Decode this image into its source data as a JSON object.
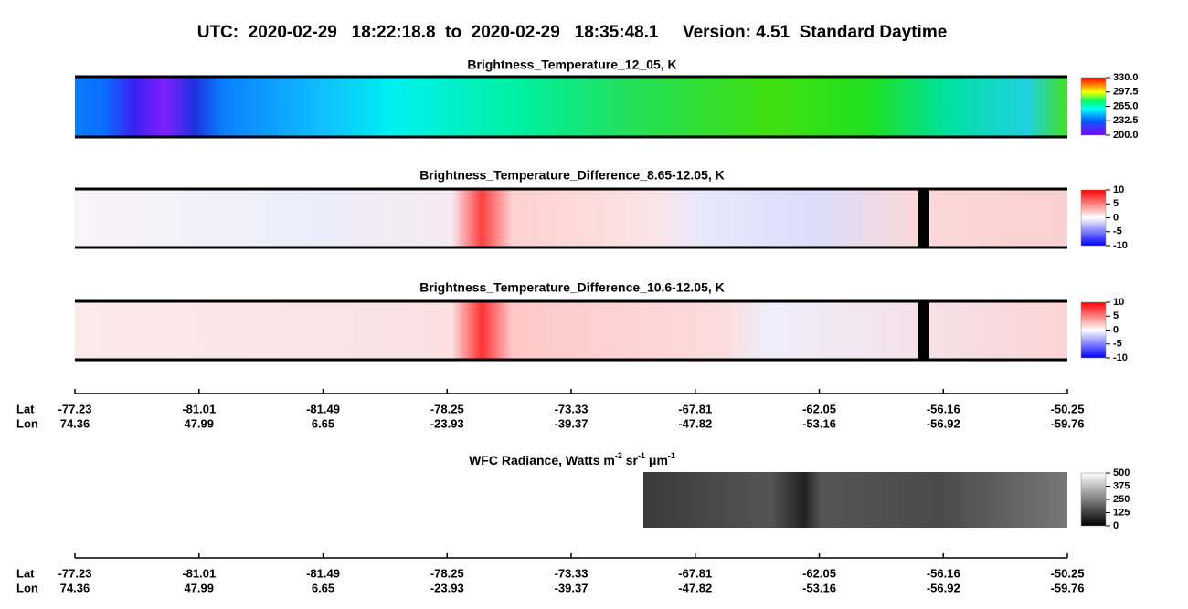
{
  "header": {
    "title": "UTC:  2020-02-29   18:22:18.8  to  2020-02-29   18:35:48.1     Version: 4.51  Standard Daytime"
  },
  "panels": [
    {
      "title": "Brightness_Temperature_12_05, K",
      "colorbar": [
        "330.0",
        "297.5",
        "265.0",
        "232.5",
        "200.0"
      ]
    },
    {
      "title": "Brightness_Temperature_Difference_8.65-12.05, K",
      "colorbar": [
        "10",
        "5",
        "0",
        "-5",
        "-10"
      ]
    },
    {
      "title": "Brightness_Temperature_Difference_10.6-12.05, K",
      "colorbar": [
        "10",
        "5",
        "0",
        "-5",
        "-10"
      ]
    },
    {
      "title": [
        "WFC Radiance, Watts m",
        "-2",
        " sr",
        "-1",
        " μm",
        "-1"
      ],
      "colorbar": [
        "500",
        "375",
        "250",
        "125",
        "0"
      ]
    }
  ],
  "axes": [
    {
      "row_labels": [
        "Lat",
        "Lon"
      ],
      "lat": [
        "-77.23",
        "-81.01",
        "-81.49",
        "-78.25",
        "-73.33",
        "-67.81",
        "-62.05",
        "-56.16",
        "-50.25"
      ],
      "lon": [
        "74.36",
        "47.99",
        "6.65",
        "-23.93",
        "-39.37",
        "-47.82",
        "-53.16",
        "-56.92",
        "-59.76"
      ]
    },
    {
      "row_labels": [
        "Lat",
        "Lon"
      ],
      "lat": [
        "-77.23",
        "-81.01",
        "-81.49",
        "-78.25",
        "-73.33",
        "-67.81",
        "-62.05",
        "-56.16",
        "-50.25"
      ],
      "lon": [
        "74.36",
        "47.99",
        "6.65",
        "-23.93",
        "-39.37",
        "-47.82",
        "-53.16",
        "-56.92",
        "-59.76"
      ]
    }
  ]
}
